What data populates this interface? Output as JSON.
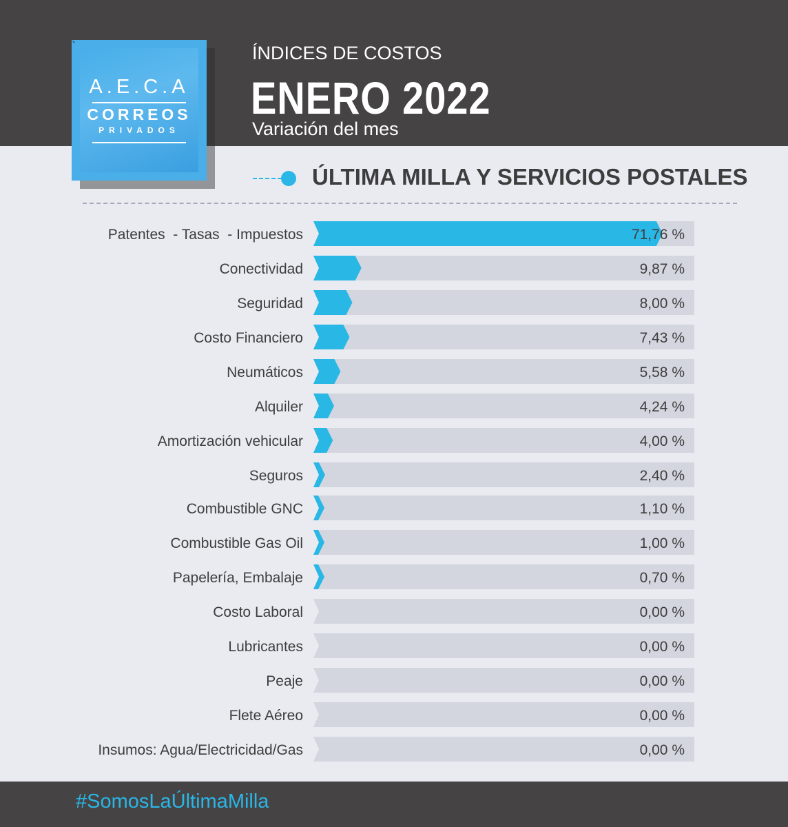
{
  "header": {
    "kicker": "ÍNDICES DE COSTOS",
    "title": "ENERO 2022",
    "subtitle": "Variación del mes",
    "background": "#454344"
  },
  "logo": {
    "line1": "A.E.C.A",
    "line2": "CORREOS",
    "line3": "PRIVADOS",
    "color": "#4aaee8"
  },
  "section": {
    "title": "ÚLTIMA MILLA Y SERVICIOS POSTALES",
    "accent": "#2ab6e6"
  },
  "footer": {
    "hashtag": "#SomosLaÚltimaMilla"
  },
  "chart_data": {
    "type": "bar",
    "orientation": "horizontal",
    "categories": [
      "Patentes  - Tasas  - Impuestos",
      "Conectividad",
      "Seguridad",
      "Costo Financiero",
      "Neumáticos",
      "Alquiler",
      "Amortización vehicular",
      "Seguros",
      "Combustible GNC",
      "Combustible Gas Oil",
      "Papelería, Embalaje",
      "Costo Laboral",
      "Lubricantes",
      "Peaje",
      "Flete Aéreo",
      "Insumos: Agua/Electricidad/Gas"
    ],
    "values": [
      71.76,
      9.87,
      8.0,
      7.43,
      5.58,
      4.24,
      4.0,
      2.4,
      1.1,
      1.0,
      0.7,
      0.0,
      0.0,
      0.0,
      0.0,
      0.0
    ],
    "value_labels": [
      "71,76 %",
      "9,87 %",
      "8,00 %",
      "7,43 %",
      "5,58 %",
      "4,24 %",
      "4,00 %",
      "2,40 %",
      "1,10 %",
      "1,00 %",
      "0,70 %",
      "0,00 %",
      "0,00 %",
      "0,00 %",
      "0,00 %",
      "0,00 %"
    ],
    "bar_color": "#29b7e5",
    "track_color": "#d3d6df",
    "grid": false,
    "legend": "none"
  }
}
